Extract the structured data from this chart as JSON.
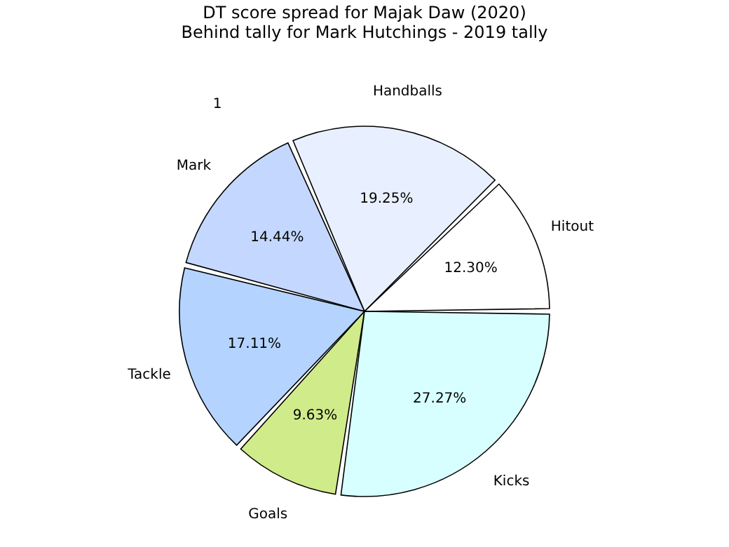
{
  "chart_data": {
    "type": "pie",
    "title": "DT score spread for Majak Daw (2020)",
    "subtitle": "Behind tally for Mark Hutchings - 2019 tally",
    "categories": [
      "Hitout",
      "Handballs",
      "Mark",
      "Tackle",
      "Goals",
      "Kicks"
    ],
    "values": [
      12.3,
      19.25,
      14.44,
      17.11,
      9.63,
      27.27
    ],
    "value_labels": [
      "12.30%",
      "19.25%",
      "14.44%",
      "17.11%",
      "9.63%",
      "27.27%"
    ],
    "colors": [
      "#ffffff",
      "#e8f0ff",
      "#c4d8ff",
      "#b4d4ff",
      "#d0eb8a",
      "#d8ffff"
    ],
    "annotations": [
      "1"
    ],
    "legend": false
  }
}
